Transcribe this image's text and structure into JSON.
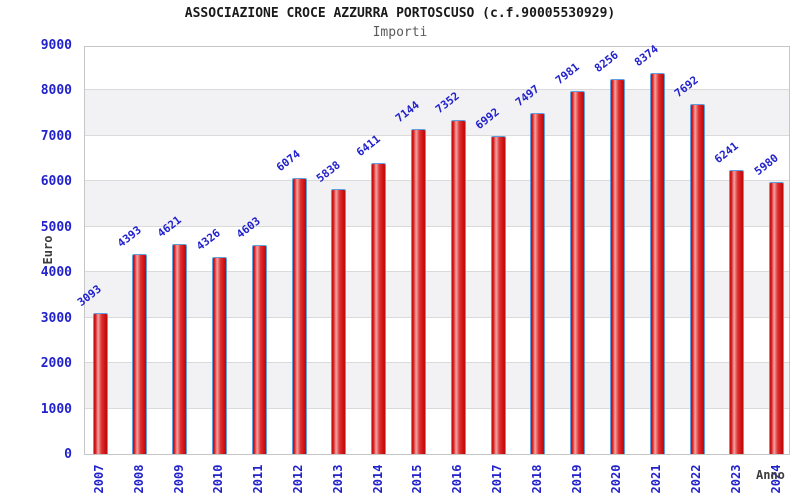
{
  "header": {
    "title": "ASSOCIAZIONE CROCE AZZURRA PORTOSCUSO (c.f.90005530929)",
    "subtitle": "Importi"
  },
  "chart_data": {
    "type": "bar",
    "title": "ASSOCIAZIONE CROCE AZZURRA PORTOSCUSO (c.f.90005530929)",
    "subtitle": "Importi",
    "xlabel": "Anno",
    "ylabel": "Euro",
    "categories": [
      "2007",
      "2008",
      "2009",
      "2010",
      "2011",
      "2012",
      "2013",
      "2014",
      "2015",
      "2016",
      "2017",
      "2018",
      "2019",
      "2020",
      "2021",
      "2022",
      "2023",
      "2024"
    ],
    "values": [
      3093,
      4393,
      4621,
      4326,
      4603,
      6074,
      5838,
      6411,
      7144,
      7352,
      6992,
      7497,
      7981,
      8256,
      8374,
      7692,
      6241,
      5980
    ],
    "ylim": [
      0,
      9000
    ],
    "ytick_step": 1000,
    "grid": true,
    "legend": "none",
    "band_fill_alternate": true,
    "colors": {
      "bar_red_edge": "#c40e0e",
      "bar_red_highlight": "#f2a3a3",
      "bar_border_blue": "#5e9fe0",
      "label_blue": "#2222cc",
      "band_gray": "#f2f2f4",
      "grid_gray": "#dadada",
      "axis_title_gray": "#3d3d3d",
      "title_black": "#1a1a1a",
      "subtitle_gray": "#5c5c5c"
    }
  }
}
